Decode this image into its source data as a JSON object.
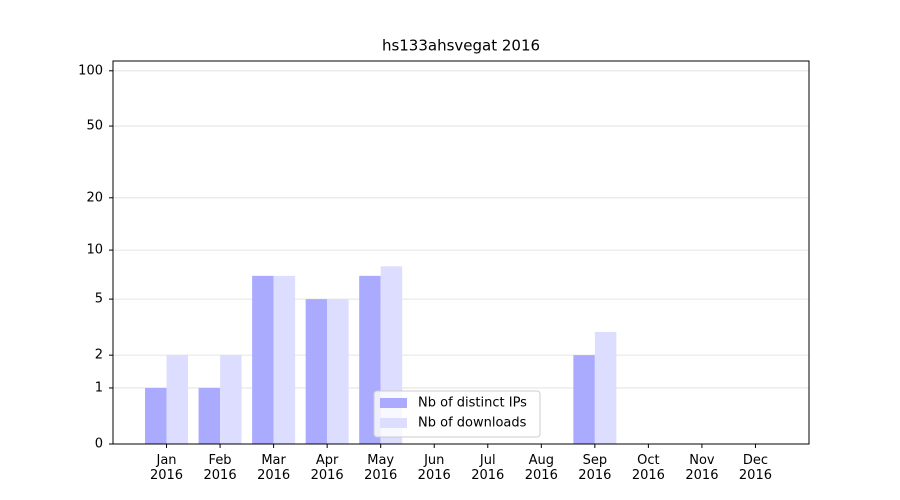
{
  "chart_data": {
    "type": "bar",
    "title": "hs133ahsvegat 2016",
    "scale": "log1p",
    "categories": [
      "Jan\n2016",
      "Feb\n2016",
      "Mar\n2016",
      "Apr\n2016",
      "May\n2016",
      "Jun\n2016",
      "Jul\n2016",
      "Aug\n2016",
      "Sep\n2016",
      "Oct\n2016",
      "Nov\n2016",
      "Dec\n2016"
    ],
    "series": [
      {
        "name": "Nb of distinct IPs",
        "color": "#aaaaff",
        "values": [
          1,
          1,
          7,
          5,
          7,
          0,
          0,
          0,
          2,
          0,
          0,
          0
        ]
      },
      {
        "name": "Nb of downloads",
        "color": "#ddddff",
        "values": [
          2,
          2,
          7,
          5,
          8,
          0,
          0,
          0,
          3,
          0,
          0,
          0
        ]
      }
    ],
    "ylim": [
      0,
      113
    ],
    "yticks": [
      0,
      1,
      2,
      5,
      10,
      20,
      50,
      100
    ],
    "grid": true,
    "legend": "lower center"
  }
}
